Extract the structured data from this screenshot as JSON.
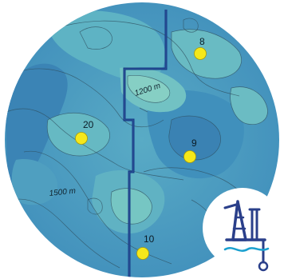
{
  "map": {
    "contour_labels": [
      "1200 m",
      "1500 m"
    ],
    "wells": [
      {
        "id": "well-8",
        "label": "8"
      },
      {
        "id": "well-20",
        "label": "20"
      },
      {
        "id": "well-9",
        "label": "9"
      },
      {
        "id": "well-10",
        "label": "10"
      }
    ],
    "colors": {
      "deep": "#3a86b6",
      "mid": "#4b9cc0",
      "shallow": "#6fc0c2",
      "high": "#86cfc4",
      "boundary": "#123a86",
      "well_marker": "#f5e81a",
      "logo": "#2a3f8a",
      "logo_water": "#1aa0cf"
    }
  },
  "logo": {
    "icon": "offshore-platform-icon"
  }
}
